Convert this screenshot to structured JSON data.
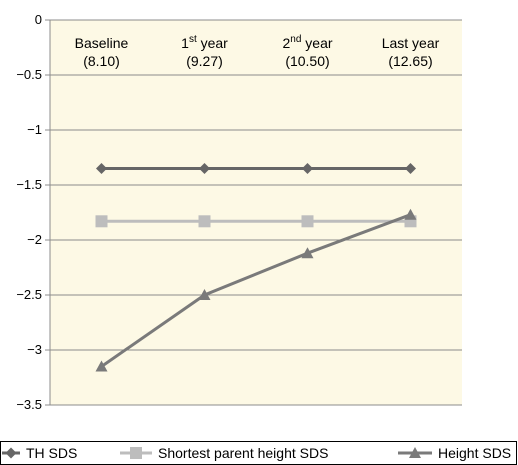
{
  "chart_data": {
    "type": "line",
    "categories": [
      {
        "name": "Baseline",
        "sup": "",
        "suffix": "",
        "value": "(8.10)"
      },
      {
        "name": "1",
        "sup": "st",
        "suffix": " year",
        "value": "(9.27)"
      },
      {
        "name": "2",
        "sup": "nd",
        "suffix": " year",
        "value": "(10.50)"
      },
      {
        "name": "Last year",
        "sup": "",
        "suffix": "",
        "value": "(12.65)"
      }
    ],
    "y_ticks": [
      "0",
      "−0.5",
      "−1",
      "−1.5",
      "−2",
      "−2.5",
      "−3",
      "−3.5"
    ],
    "y_tick_values": [
      0,
      -0.5,
      -1,
      -1.5,
      -2,
      -2.5,
      -3,
      -3.5
    ],
    "ylim": [
      -3.5,
      0
    ],
    "grid": true,
    "plot_background": "#fdf9e5",
    "series": [
      {
        "name": "TH SDS",
        "values": [
          -1.35,
          -1.35,
          -1.35,
          -1.35
        ],
        "color": "#666666",
        "marker": "diamond"
      },
      {
        "name": "Shortest parent height SDS",
        "values": [
          -1.83,
          -1.83,
          -1.83,
          -1.83
        ],
        "color": "#bdbdbd",
        "marker": "square"
      },
      {
        "name": "Height SDS",
        "values": [
          -3.15,
          -2.5,
          -2.12,
          -1.77
        ],
        "color": "#7a7a7a",
        "marker": "triangle"
      }
    ],
    "legend_position": "bottom"
  }
}
